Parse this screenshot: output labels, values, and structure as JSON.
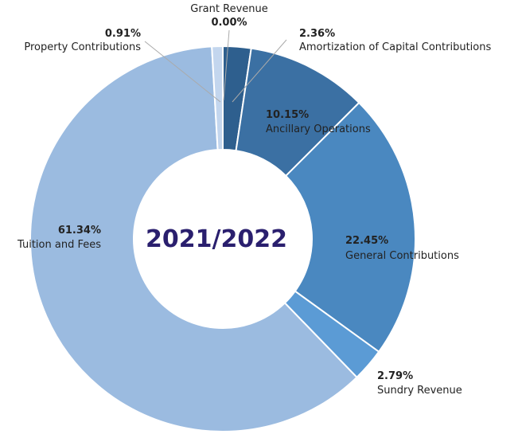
{
  "chart_data": {
    "type": "donut",
    "center_label": "2021/2022",
    "categories": [
      "Amortization of Capital Contributions",
      "Ancillary Operations",
      "General Contributions",
      "Sundry Revenue",
      "Tuition and Fees",
      "Property Contributions",
      "Grant Revenue"
    ],
    "values": [
      2.36,
      10.15,
      22.45,
      2.79,
      61.34,
      0.91,
      0.0
    ],
    "value_labels": [
      "2.36%",
      "10.15%",
      "22.45%",
      "2.79%",
      "61.34%",
      "0.91%",
      "0.00%"
    ],
    "colors": [
      "#2e5f8e",
      "#3b70a3",
      "#4a88c0",
      "#5b9bd5",
      "#9bbbe0",
      "#c3d6ee",
      "#dce7f4"
    ]
  }
}
